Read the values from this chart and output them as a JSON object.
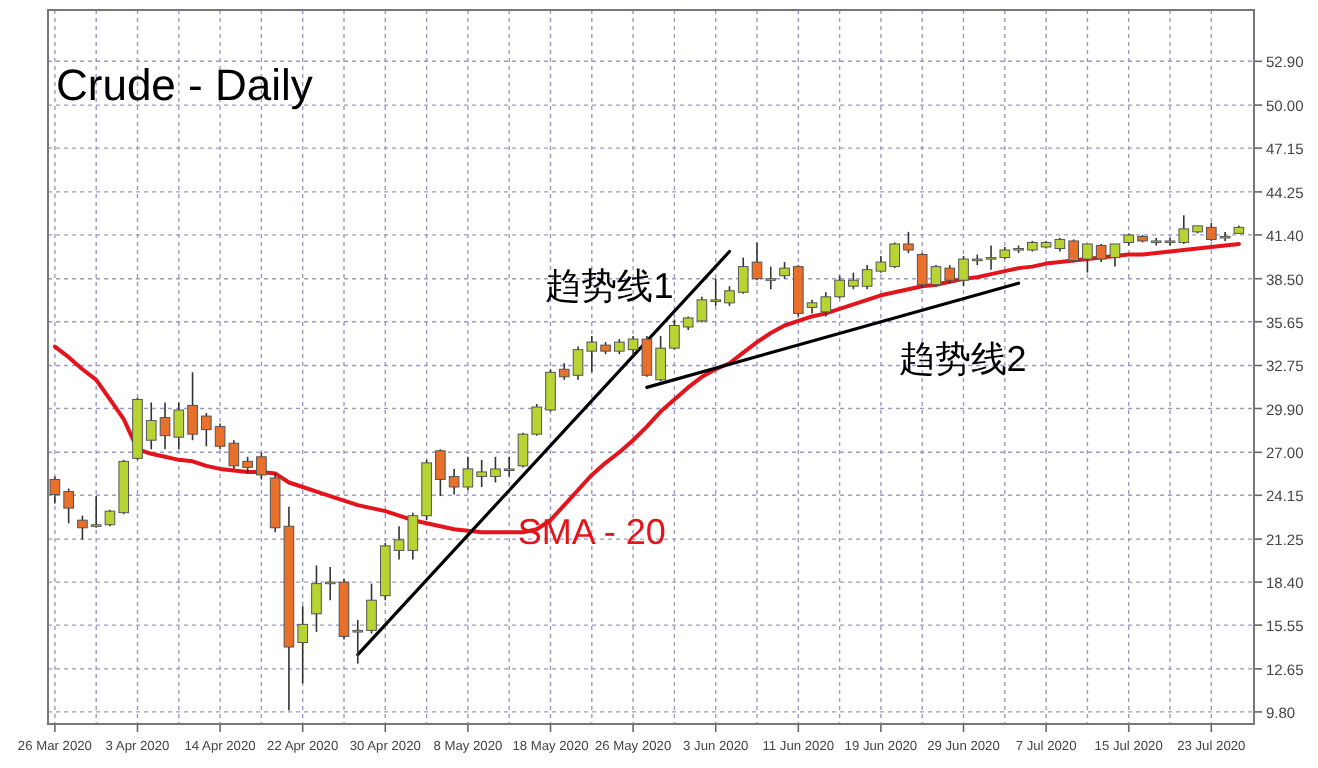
{
  "chart_data": {
    "type": "candlestick",
    "title": "Crude - Daily",
    "categories": [
      "26 Mar 2020",
      null,
      null,
      null,
      null,
      null,
      "3 Apr 2020",
      null,
      null,
      null,
      null,
      null,
      "14 Apr 2020",
      null,
      null,
      null,
      null,
      null,
      "22 Apr 2020",
      null,
      null,
      null,
      null,
      null,
      "30 Apr 2020",
      null,
      null,
      null,
      null,
      null,
      "8 May 2020",
      null,
      null,
      null,
      null,
      null,
      "18 May 2020",
      null,
      null,
      null,
      null,
      null,
      "26 May 2020",
      null,
      null,
      null,
      null,
      null,
      "3 Jun 2020",
      null,
      null,
      null,
      null,
      null,
      "11 Jun 2020",
      null,
      null,
      null,
      null,
      null,
      "19 Jun 2020",
      null,
      null,
      null,
      null,
      null,
      "29 Jun 2020",
      null,
      null,
      null,
      null,
      null,
      "7 Jul 2020",
      null,
      null,
      null,
      null,
      null,
      "15 Jul 2020",
      null,
      null,
      null,
      null,
      null,
      "23 Jul 2020",
      null,
      null
    ],
    "ohlc": [
      [
        25.2,
        25.4,
        23.6,
        24.2
      ],
      [
        24.4,
        24.6,
        22.3,
        23.3
      ],
      [
        22.5,
        22.8,
        21.2,
        22.0
      ],
      [
        22.1,
        24.1,
        22.0,
        22.2
      ],
      [
        22.2,
        23.2,
        22.1,
        23.1
      ],
      [
        23.0,
        26.5,
        22.9,
        26.4
      ],
      [
        26.6,
        30.6,
        26.5,
        30.5
      ],
      [
        27.8,
        30.3,
        27.2,
        29.1
      ],
      [
        29.3,
        30.3,
        27.2,
        28.1
      ],
      [
        28.0,
        30.3,
        27.2,
        29.8
      ],
      [
        30.1,
        32.3,
        27.8,
        28.2
      ],
      [
        29.4,
        29.6,
        27.4,
        28.5
      ],
      [
        28.7,
        28.9,
        27.2,
        27.4
      ],
      [
        27.6,
        27.8,
        25.9,
        26.1
      ],
      [
        26.4,
        26.7,
        25.6,
        26.0
      ],
      [
        26.7,
        27.0,
        25.2,
        25.5
      ],
      [
        25.3,
        25.6,
        21.7,
        22.0
      ],
      [
        22.1,
        23.4,
        9.9,
        14.1
      ],
      [
        14.4,
        16.8,
        11.7,
        15.6
      ],
      [
        16.3,
        19.5,
        15.1,
        18.3
      ],
      [
        18.3,
        19.4,
        17.2,
        18.4
      ],
      [
        18.4,
        18.6,
        14.6,
        14.8
      ],
      [
        15.1,
        15.9,
        13.0,
        15.2
      ],
      [
        15.2,
        18.3,
        15.0,
        17.2
      ],
      [
        17.5,
        21.0,
        17.2,
        20.8
      ],
      [
        20.5,
        22.1,
        19.9,
        21.2
      ],
      [
        20.5,
        23.0,
        19.9,
        22.8
      ],
      [
        22.8,
        26.5,
        22.5,
        26.3
      ],
      [
        27.1,
        27.2,
        24.1,
        25.2
      ],
      [
        25.4,
        25.9,
        24.2,
        24.7
      ],
      [
        24.7,
        26.7,
        24.5,
        25.9
      ],
      [
        25.4,
        26.5,
        24.7,
        25.7
      ],
      [
        25.4,
        26.7,
        25.0,
        25.9
      ],
      [
        25.9,
        26.7,
        25.4,
        25.9
      ],
      [
        26.1,
        28.3,
        26.0,
        28.2
      ],
      [
        28.2,
        30.2,
        28.1,
        30.0
      ],
      [
        29.8,
        32.5,
        29.7,
        32.3
      ],
      [
        32.5,
        32.9,
        31.8,
        32.0
      ],
      [
        32.1,
        34.0,
        31.8,
        33.8
      ],
      [
        33.7,
        34.7,
        32.3,
        34.3
      ],
      [
        34.1,
        34.3,
        33.5,
        33.7
      ],
      [
        33.7,
        34.5,
        33.5,
        34.3
      ],
      [
        33.8,
        34.7,
        33.4,
        34.5
      ],
      [
        34.5,
        34.7,
        32.0,
        32.1
      ],
      [
        31.8,
        34.7,
        31.7,
        33.9
      ],
      [
        33.9,
        35.8,
        33.8,
        35.4
      ],
      [
        35.3,
        36.0,
        35.1,
        35.9
      ],
      [
        35.7,
        37.3,
        35.6,
        37.1
      ],
      [
        37.0,
        38.5,
        36.7,
        37.1
      ],
      [
        36.9,
        38.0,
        36.7,
        37.7
      ],
      [
        37.6,
        39.9,
        37.5,
        39.3
      ],
      [
        39.6,
        40.9,
        38.4,
        38.5
      ],
      [
        38.5,
        39.3,
        37.8,
        38.5
      ],
      [
        38.7,
        39.6,
        38.5,
        39.2
      ],
      [
        39.3,
        39.4,
        36.0,
        36.2
      ],
      [
        36.6,
        37.1,
        36.2,
        36.9
      ],
      [
        36.3,
        37.6,
        36.0,
        37.3
      ],
      [
        37.3,
        38.7,
        37.2,
        38.4
      ],
      [
        38.0,
        38.9,
        37.8,
        38.4
      ],
      [
        38.0,
        39.4,
        37.8,
        39.1
      ],
      [
        39.0,
        40.0,
        38.9,
        39.6
      ],
      [
        39.3,
        40.9,
        39.2,
        40.8
      ],
      [
        40.8,
        41.6,
        40.2,
        40.4
      ],
      [
        40.1,
        40.2,
        37.9,
        38.1
      ],
      [
        38.1,
        39.4,
        38.0,
        39.3
      ],
      [
        39.2,
        39.4,
        38.2,
        38.4
      ],
      [
        38.4,
        40.0,
        38.0,
        39.8
      ],
      [
        39.8,
        40.1,
        39.4,
        39.8
      ],
      [
        39.9,
        40.7,
        39.1,
        39.9
      ],
      [
        39.9,
        40.6,
        39.8,
        40.4
      ],
      [
        40.4,
        40.7,
        40.2,
        40.5
      ],
      [
        40.4,
        41.0,
        40.3,
        40.9
      ],
      [
        40.6,
        41.0,
        40.5,
        40.9
      ],
      [
        40.5,
        41.2,
        40.3,
        41.1
      ],
      [
        41.0,
        41.1,
        39.6,
        39.7
      ],
      [
        39.8,
        40.8,
        38.9,
        40.8
      ],
      [
        40.7,
        40.8,
        39.6,
        39.8
      ],
      [
        39.9,
        40.8,
        39.3,
        40.8
      ],
      [
        40.9,
        41.5,
        40.7,
        41.4
      ],
      [
        41.3,
        41.4,
        40.9,
        41.0
      ],
      [
        41.0,
        41.2,
        40.7,
        41.0
      ],
      [
        41.0,
        41.2,
        40.7,
        41.0
      ],
      [
        40.9,
        42.7,
        40.8,
        41.8
      ],
      [
        41.6,
        42.0,
        41.5,
        42.0
      ],
      [
        41.9,
        42.2,
        41.0,
        41.1
      ],
      [
        41.2,
        41.6,
        41.0,
        41.3
      ],
      [
        41.5,
        42.0,
        41.5,
        41.9
      ]
    ],
    "colors": [
      "#e8702a",
      "#e8702a",
      "#e8702a",
      "#b8d433",
      "#b8d433",
      "#b8d433",
      "#b8d433",
      "#b8d433",
      "#e8702a",
      "#b8d433",
      "#e8702a",
      "#e8702a",
      "#e8702a",
      "#e8702a",
      "#e8702a",
      "#e8702a",
      "#e8702a",
      "#e8702a",
      "#b8d433",
      "#b8d433",
      "#b8d433",
      "#e8702a",
      "#b8d433",
      "#b8d433",
      "#b8d433",
      "#b8d433",
      "#b8d433",
      "#b8d433",
      "#e8702a",
      "#e8702a",
      "#b8d433",
      "#b8d433",
      "#b8d433",
      "#b8d433",
      "#b8d433",
      "#b8d433",
      "#b8d433",
      "#e8702a",
      "#b8d433",
      "#b8d433",
      "#e8702a",
      "#b8d433",
      "#b8d433",
      "#e8702a",
      "#b8d433",
      "#b8d433",
      "#b8d433",
      "#b8d433",
      "#b8d433",
      "#b8d433",
      "#b8d433",
      "#e8702a",
      "#b8d433",
      "#b8d433",
      "#e8702a",
      "#b8d433",
      "#b8d433",
      "#b8d433",
      "#b8d433",
      "#b8d433",
      "#b8d433",
      "#b8d433",
      "#e8702a",
      "#e8702a",
      "#b8d433",
      "#e8702a",
      "#b8d433",
      "#b8d433",
      "#b8d433",
      "#b8d433",
      "#b8d433",
      "#b8d433",
      "#b8d433",
      "#b8d433",
      "#e8702a",
      "#b8d433",
      "#e8702a",
      "#b8d433",
      "#b8d433",
      "#e8702a",
      "#b8d433",
      "#b8d433",
      "#b8d433",
      "#b8d433",
      "#e8702a",
      "#b8d433",
      "#b8d433"
    ],
    "series": [
      {
        "name": "SMA - 20",
        "type": "line",
        "color": "#e3141c",
        "values": [
          34.0,
          33.3,
          32.5,
          31.8,
          30.5,
          29.2,
          27.2,
          26.9,
          26.7,
          26.5,
          26.4,
          26.1,
          25.9,
          25.8,
          25.7,
          25.7,
          25.6,
          25.0,
          24.7,
          24.4,
          24.1,
          23.8,
          23.5,
          23.3,
          23.1,
          22.8,
          22.5,
          22.3,
          22.1,
          21.9,
          21.8,
          21.7,
          21.7,
          21.7,
          21.7,
          21.9,
          22.5,
          23.5,
          24.5,
          25.5,
          26.3,
          27.0,
          27.8,
          28.7,
          29.7,
          30.5,
          31.3,
          32.0,
          32.5,
          32.9,
          33.6,
          34.3,
          34.9,
          35.4,
          35.7,
          36.0,
          36.2,
          36.5,
          36.8,
          37.1,
          37.4,
          37.6,
          37.8,
          38.0,
          38.1,
          38.3,
          38.5,
          38.6,
          38.8,
          39.0,
          39.2,
          39.3,
          39.5,
          39.6,
          39.7,
          39.8,
          39.9,
          40.0,
          40.1,
          40.1,
          40.2,
          40.3,
          40.4,
          40.5,
          40.6,
          40.7,
          40.8
        ]
      },
      {
        "name": "趋势线1",
        "type": "line",
        "color": "#000000",
        "values": [
          null,
          null,
          null,
          null,
          null,
          null,
          null,
          null,
          null,
          null,
          null,
          null,
          null,
          null,
          null,
          null,
          null,
          null,
          null,
          null,
          null,
          null,
          13.6,
          null,
          null,
          null,
          null,
          null,
          null,
          null,
          null,
          null,
          null,
          null,
          null,
          null,
          null,
          null,
          null,
          null,
          null,
          null,
          null,
          null,
          null,
          null,
          null,
          null,
          null,
          40.3,
          null,
          null,
          null,
          null,
          null,
          null,
          null,
          null,
          null,
          null,
          null,
          null,
          null,
          null,
          null,
          null,
          null,
          null,
          null,
          null,
          null,
          null,
          null,
          null,
          null,
          null,
          null,
          null,
          null,
          null,
          null,
          null,
          null,
          null,
          null,
          null,
          null
        ]
      },
      {
        "name": "趋势线2",
        "type": "line",
        "color": "#000000",
        "values": [
          null,
          null,
          null,
          null,
          null,
          null,
          null,
          null,
          null,
          null,
          null,
          null,
          null,
          null,
          null,
          null,
          null,
          null,
          null,
          null,
          null,
          null,
          null,
          null,
          null,
          null,
          null,
          null,
          null,
          null,
          null,
          null,
          null,
          null,
          null,
          null,
          null,
          null,
          null,
          null,
          null,
          null,
          null,
          31.3,
          null,
          null,
          null,
          null,
          null,
          null,
          null,
          null,
          null,
          null,
          null,
          null,
          null,
          null,
          null,
          null,
          null,
          null,
          null,
          null,
          null,
          null,
          null,
          null,
          null,
          null,
          38.2,
          null,
          null,
          null,
          null,
          null,
          null,
          null,
          null,
          null,
          null,
          null,
          null,
          null,
          null,
          null,
          null
        ]
      }
    ],
    "ylim": [
      9.0,
      56.3
    ],
    "yticks": [
      {
        "value": 9.8,
        "label": "9.80"
      },
      {
        "value": 12.65,
        "label": "12.65"
      },
      {
        "value": 15.55,
        "label": "15.55"
      },
      {
        "value": 18.4,
        "label": "18.40"
      },
      {
        "value": 21.25,
        "label": "21.25"
      },
      {
        "value": 24.15,
        "label": "24.15"
      },
      {
        "value": 27.0,
        "label": "27.00"
      },
      {
        "value": 29.9,
        "label": "29.90"
      },
      {
        "value": 32.75,
        "label": "32.75"
      },
      {
        "value": 35.65,
        "label": "35.65"
      },
      {
        "value": 38.5,
        "label": "38.50"
      },
      {
        "value": 41.4,
        "label": "41.40"
      },
      {
        "value": 44.25,
        "label": "44.25"
      },
      {
        "value": 47.15,
        "label": "47.15"
      },
      {
        "value": 50.0,
        "label": "50.00"
      },
      {
        "value": 52.9,
        "label": "52.90"
      }
    ],
    "grid": true,
    "legend": false
  }
}
